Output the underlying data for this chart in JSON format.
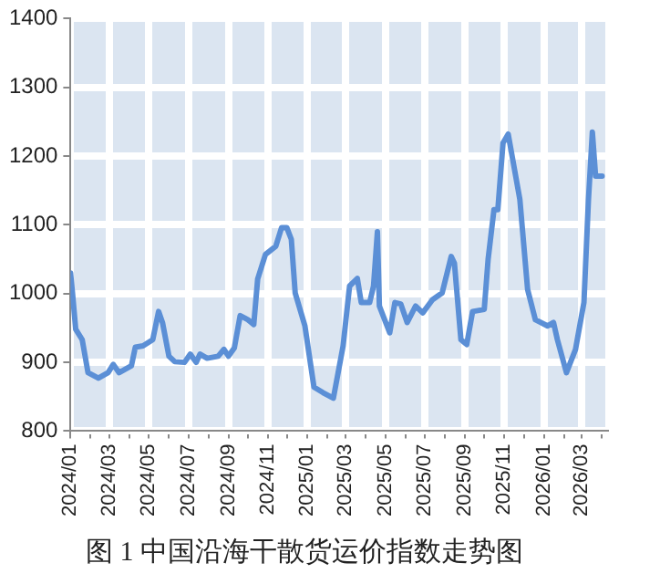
{
  "chart_data": {
    "type": "line",
    "title": "图 1 中国沿海干散货运价指数走势图",
    "x": [
      "2024-01-01",
      "2024-01-04",
      "2024-01-09",
      "2024-01-19",
      "2024-01-28",
      "2024-02-13",
      "2024-02-28",
      "2024-03-07",
      "2024-03-16",
      "2024-04-04",
      "2024-04-10",
      "2024-04-22",
      "2024-05-07",
      "2024-05-16",
      "2024-05-22",
      "2024-06-01",
      "2024-06-10",
      "2024-06-25",
      "2024-07-04",
      "2024-07-13",
      "2024-07-19",
      "2024-07-30",
      "2024-08-16",
      "2024-08-25",
      "2024-09-01",
      "2024-09-10",
      "2024-09-19",
      "2024-10-01",
      "2024-10-10",
      "2024-10-16",
      "2024-10-28",
      "2024-11-13",
      "2024-11-22",
      "2024-11-30",
      "2024-12-07",
      "2024-12-13",
      "2024-12-28",
      "2025-01-11",
      "2025-01-25",
      "2025-02-10",
      "2025-02-25",
      "2025-03-07",
      "2025-03-19",
      "2025-03-25",
      "2025-04-07",
      "2025-04-13",
      "2025-04-19",
      "2025-04-22",
      "2025-05-08",
      "2025-05-16",
      "2025-05-25",
      "2025-06-04",
      "2025-06-17",
      "2025-06-28",
      "2025-07-13",
      "2025-07-28",
      "2025-08-11",
      "2025-08-16",
      "2025-08-26",
      "2025-09-04",
      "2025-09-13",
      "2025-10-01",
      "2025-10-07",
      "2025-10-16",
      "2025-10-22",
      "2025-10-30",
      "2025-11-07",
      "2025-11-25",
      "2025-12-07",
      "2025-12-19",
      "2026-01-07",
      "2026-01-16",
      "2026-01-22",
      "2026-02-05",
      "2026-02-19",
      "2026-03-04",
      "2026-03-11",
      "2026-03-17",
      "2026-03-22",
      "2026-04-01"
    ],
    "series": [
      {
        "color": "#5b8fd6",
        "values": [
          1030,
          1001,
          948,
          933,
          885,
          877,
          885,
          897,
          885,
          895,
          922,
          924,
          933,
          974,
          958,
          909,
          901,
          900,
          912,
          900,
          912,
          906,
          909,
          919,
          909,
          921,
          968,
          962,
          955,
          1021,
          1057,
          1069,
          1096,
          1096,
          1079,
          1001,
          953,
          864,
          856,
          848,
          924,
          1011,
          1022,
          987,
          987,
          1011,
          1090,
          982,
          943,
          987,
          985,
          958,
          982,
          972,
          991,
          1001,
          1054,
          1044,
          933,
          926,
          974,
          977,
          1050,
          1122,
          1122,
          1219,
          1232,
          1137,
          1006,
          962,
          953,
          958,
          933,
          885,
          919,
          987,
          1137,
          1235,
          1171,
          1171
        ]
      }
    ],
    "xlim": [
      "2024-01-01",
      "2026-04-06"
    ],
    "xticks": [
      {
        "value": "2024-01",
        "label": "2024/01"
      },
      {
        "value": "2024-02",
        "label": null
      },
      {
        "value": "2024-03",
        "label": "2024/03"
      },
      {
        "value": "2024-04",
        "label": null
      },
      {
        "value": "2024-05",
        "label": "2024/05"
      },
      {
        "value": "2024-06",
        "label": null
      },
      {
        "value": "2024-07",
        "label": "2024/07"
      },
      {
        "value": "2024-08",
        "label": null
      },
      {
        "value": "2024-09",
        "label": "2024/09"
      },
      {
        "value": "2024-10",
        "label": null
      },
      {
        "value": "2024-11",
        "label": "2024/11"
      },
      {
        "value": "2024-12",
        "label": null
      },
      {
        "value": "2025-01",
        "label": "2025/01"
      },
      {
        "value": "2025-02",
        "label": null
      },
      {
        "value": "2025-03",
        "label": "2025/03"
      },
      {
        "value": "2025-04",
        "label": null
      },
      {
        "value": "2025-05",
        "label": "2025/05"
      },
      {
        "value": "2025-06",
        "label": null
      },
      {
        "value": "2025-07",
        "label": "2025/07"
      },
      {
        "value": "2025-08",
        "label": null
      },
      {
        "value": "2025-09",
        "label": "2025/09"
      },
      {
        "value": "2025-10",
        "label": null
      },
      {
        "value": "2025-11",
        "label": "2025/11"
      },
      {
        "value": "2025-12",
        "label": null
      },
      {
        "value": "2026-01",
        "label": "2026/01"
      },
      {
        "value": "2026-02",
        "label": null
      },
      {
        "value": "2026-03",
        "label": "2026/03"
      },
      {
        "value": "2026-04",
        "label": null
      }
    ],
    "ylim": [
      800,
      1400
    ],
    "yticks": [
      800,
      900,
      1000,
      1100,
      1200,
      1300,
      1400
    ],
    "grid": true,
    "legend": false,
    "marker": "none",
    "line_style": "solid"
  }
}
